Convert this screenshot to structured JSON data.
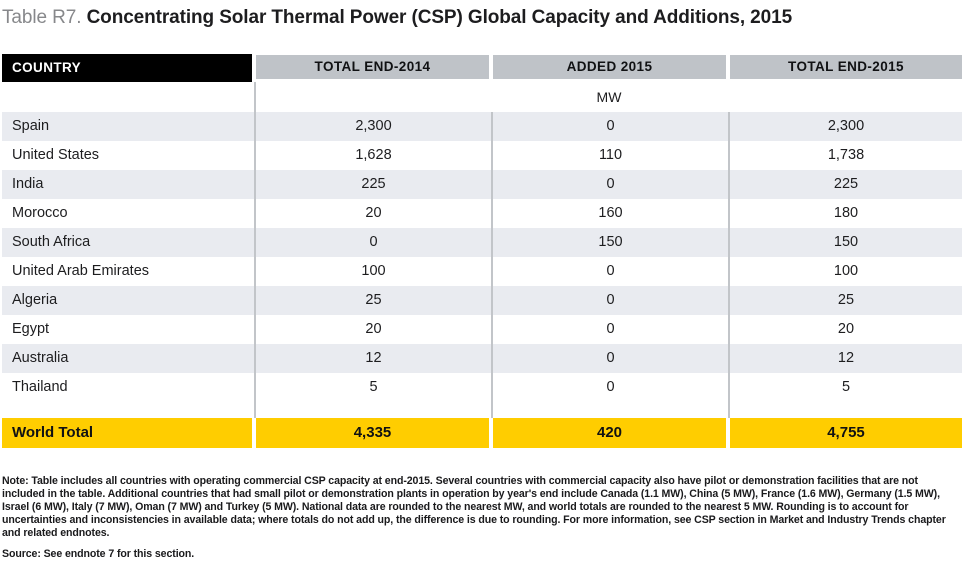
{
  "title": {
    "prefix": "Table R7.",
    "main": "Concentrating Solar Thermal Power (CSP) Global Capacity and Additions, 2015"
  },
  "chart_data": {
    "type": "table",
    "title": "Table R7. Concentrating Solar Thermal Power (CSP) Global Capacity and Additions, 2015",
    "columns": [
      "COUNTRY",
      "TOTAL END-2014",
      "ADDED 2015",
      "TOTAL END-2015"
    ],
    "unit": "MW",
    "rows": [
      [
        "Spain",
        "2,300",
        "0",
        "2,300"
      ],
      [
        "United States",
        "1,628",
        "110",
        "1,738"
      ],
      [
        "India",
        "225",
        "0",
        "225"
      ],
      [
        "Morocco",
        "20",
        "160",
        "180"
      ],
      [
        "South Africa",
        "0",
        "150",
        "150"
      ],
      [
        "United Arab Emirates",
        "100",
        "0",
        "100"
      ],
      [
        "Algeria",
        "25",
        "0",
        "25"
      ],
      [
        "Egypt",
        "20",
        "0",
        "20"
      ],
      [
        "Australia",
        "12",
        "0",
        "12"
      ],
      [
        "Thailand",
        "5",
        "0",
        "5"
      ]
    ],
    "total_row": [
      "World Total",
      "4,335",
      "420",
      "4,755"
    ]
  },
  "notes": {
    "note": "Note: Table includes all countries with operating commercial CSP capacity at end-2015. Several countries with commercial capacity also have pilot or demonstration facilities that are not included in the table. Additional countries that had small pilot or demonstration plants in operation by year's end include Canada (1.1 MW), China (5 MW), France (1.6 MW), Germany (1.5 MW), Israel (6 MW), Italy (7 MW), Oman (7 MW) and Turkey (5 MW). National data are rounded to the nearest MW, and world totals are rounded to the nearest 5 MW. Rounding is to account for uncertainties and inconsistencies in available data; where totals do not add up, the difference is due to rounding. For more information, see CSP section in Market and Industry Trends chapter and related endnotes.",
    "source": "Source: See endnote 7 for this section."
  },
  "colors": {
    "header_black": "#000000",
    "header_gray": "#bfc3c8",
    "row_shade": "#e9ebf0",
    "total_yellow": "#ffcd00",
    "divider_gray": "#c2c5c9",
    "title_gray": "#87888b",
    "text_black": "#1d1d1f"
  }
}
